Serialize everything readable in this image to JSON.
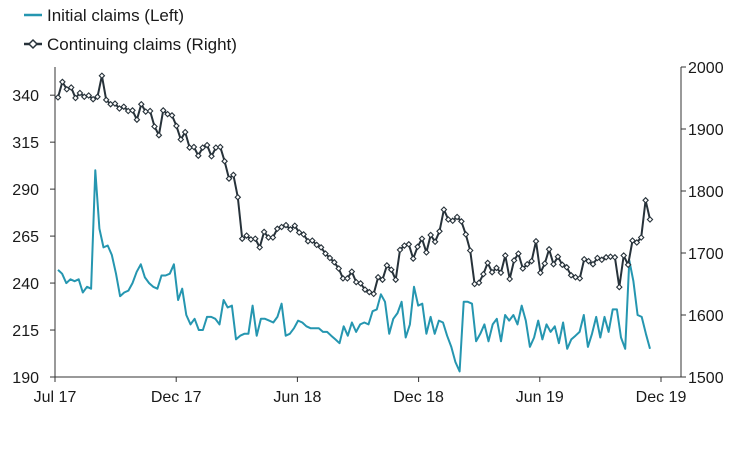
{
  "chart_data": {
    "type": "line",
    "x_ticks": [
      "Jul 17",
      "Dec 17",
      "Jun 18",
      "Dec 18",
      "Jun 19",
      "Dec 19"
    ],
    "y_left": {
      "ticks": [
        190,
        215,
        240,
        265,
        290,
        315,
        340
      ],
      "range": [
        190,
        355
      ]
    },
    "y_right": {
      "ticks": [
        1500,
        1600,
        1700,
        1800,
        1900,
        2000
      ],
      "range": [
        1500,
        2000
      ]
    },
    "legend": [
      {
        "label": "Initial claims (Left)",
        "color": "#2596b0",
        "marker": "none"
      },
      {
        "label": "Continuing claims (Right)",
        "color": "#27323a",
        "marker": "diamond"
      }
    ],
    "series": [
      {
        "name": "Initial claims (Left)",
        "axis": "left",
        "color": "#2596b0",
        "values": [
          247,
          245,
          240,
          242,
          241,
          242,
          235,
          238,
          237,
          300,
          269,
          259,
          260,
          255,
          245,
          233,
          235,
          236,
          240,
          246,
          250,
          243,
          240,
          238,
          237,
          244,
          244,
          245,
          250,
          231,
          237,
          223,
          218,
          221,
          215,
          215,
          222,
          222,
          221,
          218,
          231,
          227,
          228,
          210,
          212,
          213,
          213,
          228,
          212,
          221,
          221,
          220,
          219,
          222,
          229,
          212,
          213,
          216,
          220,
          219,
          217,
          216,
          216,
          216,
          214,
          214,
          212,
          210,
          208,
          217,
          212,
          219,
          214,
          218,
          219,
          218,
          225,
          226,
          234,
          230,
          213,
          221,
          224,
          230,
          211,
          218,
          238,
          228,
          229,
          213,
          222,
          213,
          220,
          219,
          212,
          206,
          198,
          193,
          230,
          230,
          229,
          209,
          213,
          218,
          209,
          218,
          221,
          209,
          223,
          220,
          223,
          218,
          228,
          220,
          206,
          211,
          220,
          210,
          218,
          214,
          217,
          208,
          219,
          205,
          210,
          212,
          214,
          223,
          206,
          213,
          222,
          211,
          222,
          214,
          226,
          226,
          211,
          205,
          252,
          241,
          223,
          222,
          213,
          205
        ]
      },
      {
        "name": "Continuing claims (Right)",
        "axis": "right",
        "color": "#27323a",
        "values": [
          1951,
          1976,
          1964,
          1967,
          1950,
          1958,
          1952,
          1954,
          1948,
          1952,
          1986,
          1947,
          1940,
          1941,
          1933,
          1936,
          1929,
          1930,
          1915,
          1940,
          1928,
          1929,
          1904,
          1890,
          1930,
          1924,
          1922,
          1905,
          1883,
          1895,
          1870,
          1871,
          1857,
          1870,
          1874,
          1856,
          1870,
          1871,
          1848,
          1820,
          1826,
          1790,
          1723,
          1728,
          1722,
          1723,
          1709,
          1734,
          1725,
          1725,
          1739,
          1742,
          1745,
          1738,
          1744,
          1733,
          1730,
          1719,
          1720,
          1713,
          1709,
          1699,
          1692,
          1685,
          1675,
          1659,
          1659,
          1670,
          1653,
          1651,
          1641,
          1637,
          1634,
          1661,
          1657,
          1680,
          1673,
          1657,
          1705,
          1712,
          1714,
          1691,
          1710,
          1723,
          1701,
          1729,
          1718,
          1735,
          1770,
          1754,
          1752,
          1758,
          1751,
          1730,
          1704,
          1650,
          1652,
          1666,
          1684,
          1669,
          1676,
          1668,
          1696,
          1658,
          1688,
          1699,
          1675,
          1682,
          1687,
          1719,
          1668,
          1683,
          1706,
          1682,
          1694,
          1681,
          1677,
          1664,
          1661,
          1659,
          1690,
          1687,
          1682,
          1692,
          1689,
          1693,
          1694,
          1693,
          1645,
          1696,
          1681,
          1720,
          1717,
          1725,
          1785,
          1754
        ]
      }
    ]
  }
}
